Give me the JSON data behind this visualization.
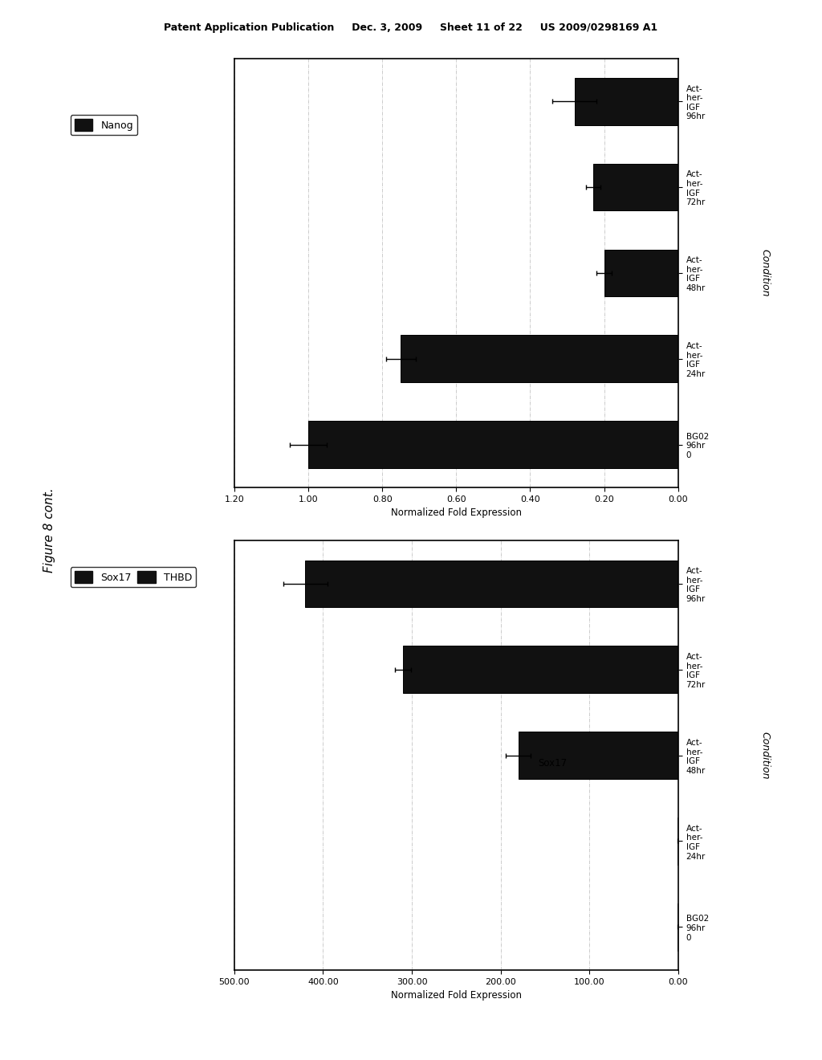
{
  "top_chart": {
    "legend_label": "Nanog",
    "ylabel_axis": "Normalized Fold Expression",
    "xlabel_axis": "Condition",
    "categories": [
      "BG02\n96hr\n0",
      "Act-\nher-\nIGF\n24hr",
      "Act-\nher-\nIGF\n48hr",
      "Act-\nher-\nIGF\n72hr",
      "Act-\nher-\nIGF\n96hr"
    ],
    "values": [
      1.0,
      0.75,
      0.2,
      0.23,
      0.28
    ],
    "errors": [
      0.05,
      0.04,
      0.02,
      0.02,
      0.06
    ],
    "bar_color": "#111111",
    "xlim_left": 1.2,
    "xlim_right": 0.0,
    "xticks": [
      1.2,
      1.0,
      0.8,
      0.6,
      0.4,
      0.2,
      0.0
    ],
    "xtick_labels": [
      "1.20",
      "1.00",
      "0.80",
      "0.60",
      "0.40",
      "0.20",
      "0.00"
    ]
  },
  "bottom_chart": {
    "legend_labels": [
      "Sox17",
      "THBD"
    ],
    "ylabel_axis": "Normalized Fold Expression",
    "xlabel_axis": "Condition",
    "categories": [
      "BG02\n96hr\n0",
      "Act-\nher-\nIGF\n24hr",
      "Act-\nher-\nIGF\n48hr",
      "Act-\nher-\nIGF\n72hr",
      "Act-\nher-\nIGF\n96hr"
    ],
    "sox17_values": [
      0.5,
      0.5,
      180.0,
      310.0,
      420.0
    ],
    "sox17_errors": [
      0.3,
      0.3,
      14.0,
      9.0,
      25.0
    ],
    "sox17_annotation_text": "Sox17",
    "sox17_annotation_xi": 2,
    "bar_color": "#111111",
    "xlim_left": 500.0,
    "xlim_right": 0.0,
    "xticks": [
      500.0,
      400.0,
      300.0,
      200.0,
      100.0,
      0.0
    ],
    "xtick_labels": [
      "500.00",
      "400.00",
      "300.00",
      "200.00",
      "100.00",
      "0.00"
    ]
  },
  "header_text": "Patent Application Publication     Dec. 3, 2009     Sheet 11 of 22     US 2009/0298169 A1",
  "figure_label": "Figure 8 cont.",
  "bg_color": "#ffffff",
  "text_color": "#000000",
  "grid_color": "#888888",
  "grid_alpha": 0.6,
  "grid_linestyle": "-.",
  "grid_linewidth": 0.5
}
